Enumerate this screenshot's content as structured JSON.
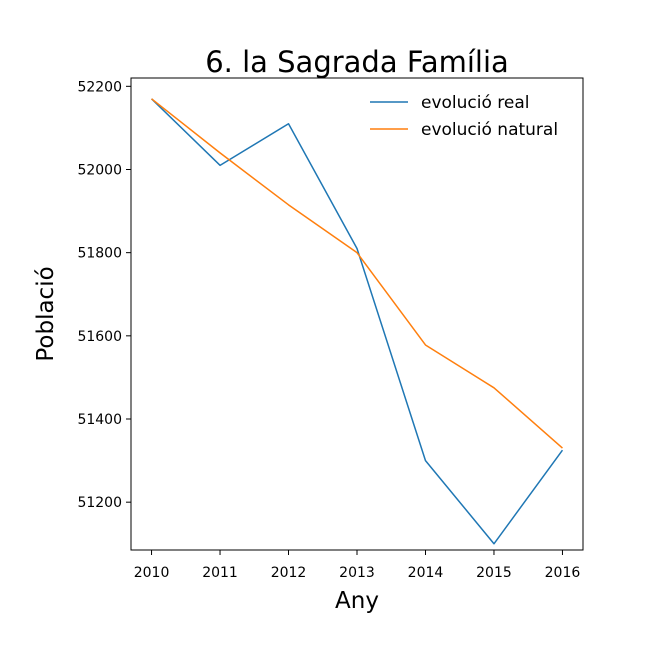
{
  "chart_data": {
    "type": "line",
    "title": "6. la Sagrada Família",
    "xlabel": "Any",
    "ylabel": "Població",
    "x": [
      2010,
      2011,
      2012,
      2013,
      2014,
      2015,
      2016
    ],
    "xticks": [
      "2010",
      "2011",
      "2012",
      "2013",
      "2014",
      "2015",
      "2016"
    ],
    "yticks": [
      "51200",
      "51400",
      "51600",
      "51800",
      "52000",
      "52200"
    ],
    "ytick_values": [
      51200,
      51400,
      51600,
      51800,
      52000,
      52200
    ],
    "xlim": [
      2009.7,
      2016.3
    ],
    "ylim": [
      51085,
      52220
    ],
    "grid": false,
    "legend_position": "top-right",
    "series": [
      {
        "name": "evolució real",
        "color": "#1f77b4",
        "values": [
          52170,
          52010,
          52110,
          51810,
          51300,
          51100,
          51325
        ]
      },
      {
        "name": "evolució natural",
        "color": "#ff7f0e",
        "values": [
          52170,
          52040,
          51915,
          51800,
          51578,
          51475,
          51330
        ]
      }
    ]
  }
}
